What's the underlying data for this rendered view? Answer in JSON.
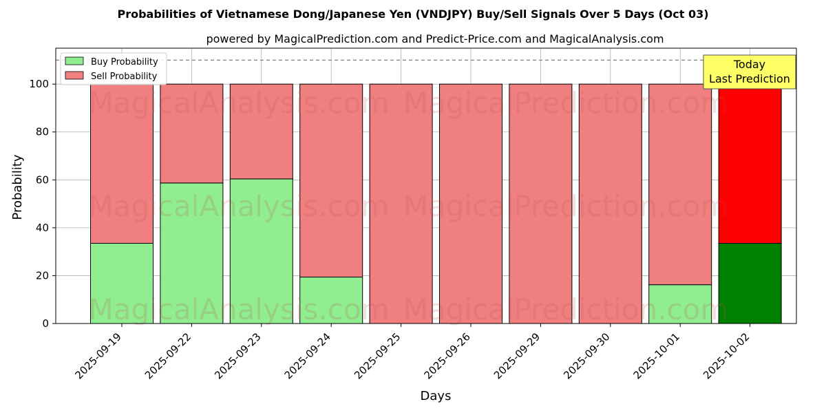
{
  "chart_data": {
    "type": "bar",
    "stacked": true,
    "title": "Probabilities of Vietnamese Dong/Japanese Yen (VNDJPY) Buy/Sell Signals Over 5 Days (Oct 03)",
    "subtitle": "powered by MagicalPrediction.com and Predict-Price.com and MagicalAnalysis.com",
    "xlabel": "Days",
    "ylabel": "Probability",
    "ylim": [
      0,
      115
    ],
    "yticks": [
      0,
      20,
      40,
      60,
      80,
      100
    ],
    "reference_line": 110,
    "grid": true,
    "legend_position": "top-left",
    "categories": [
      "2025-09-19",
      "2025-09-22",
      "2025-09-23",
      "2025-09-24",
      "2025-09-25",
      "2025-09-26",
      "2025-09-29",
      "2025-09-30",
      "2025-10-01",
      "2025-10-02"
    ],
    "series": [
      {
        "name": "Buy Probability",
        "values": [
          33.5,
          58.7,
          60.4,
          19.4,
          0,
          0,
          0,
          0,
          16.2,
          33.5
        ]
      },
      {
        "name": "Sell Probability",
        "values": [
          66.5,
          41.3,
          39.6,
          80.6,
          100,
          100,
          100,
          100,
          83.8,
          66.5
        ]
      }
    ],
    "colors": {
      "buy": "#90ee90",
      "sell": "#f08080",
      "buy_highlight": "#008000",
      "sell_highlight": "#ff0000",
      "annotation_bg": "#ffff66"
    },
    "annotation": {
      "line1": "Today",
      "line2": "Last Prediction"
    },
    "watermarks": [
      "MagicalAnalysis.com",
      "MagicalPrediction.com"
    ]
  }
}
